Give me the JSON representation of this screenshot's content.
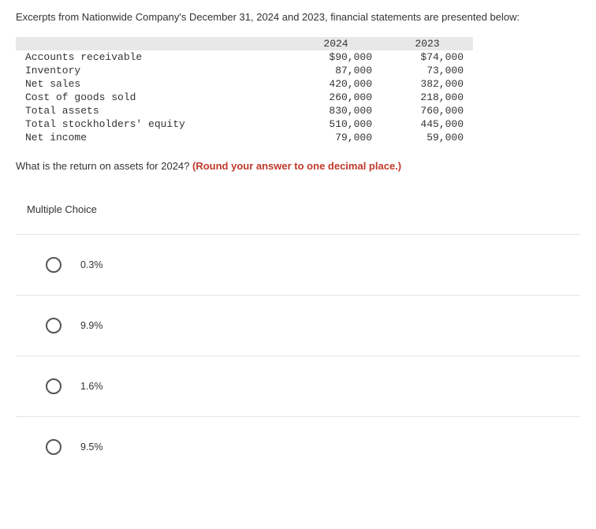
{
  "intro": "Excerpts from Nationwide Company's December 31, 2024 and 2023, financial statements are presented below:",
  "table": {
    "col1": "2024",
    "col2": "2023",
    "rows": [
      {
        "label": "Accounts receivable",
        "v1": "$90,000",
        "v2": "$74,000"
      },
      {
        "label": "Inventory",
        "v1": "87,000",
        "v2": "73,000"
      },
      {
        "label": "Net sales",
        "v1": "420,000",
        "v2": "382,000"
      },
      {
        "label": "Cost of goods sold",
        "v1": "260,000",
        "v2": "218,000"
      },
      {
        "label": "Total assets",
        "v1": "830,000",
        "v2": "760,000"
      },
      {
        "label": "Total stockholders' equity",
        "v1": "510,000",
        "v2": "445,000"
      },
      {
        "label": "Net income",
        "v1": "79,000",
        "v2": "59,000"
      }
    ]
  },
  "question_plain": "What is the return on assets for 2024? ",
  "question_red": "(Round your answer to one decimal place.)",
  "mc_label": "Multiple Choice",
  "options": [
    "0.3%",
    "9.9%",
    "1.6%",
    "9.5%"
  ],
  "colors": {
    "header_bg": "#e8e8e8",
    "border": "#e4e4e4",
    "red": "#c0392b",
    "text": "#333333",
    "radio_border": "#555555"
  }
}
